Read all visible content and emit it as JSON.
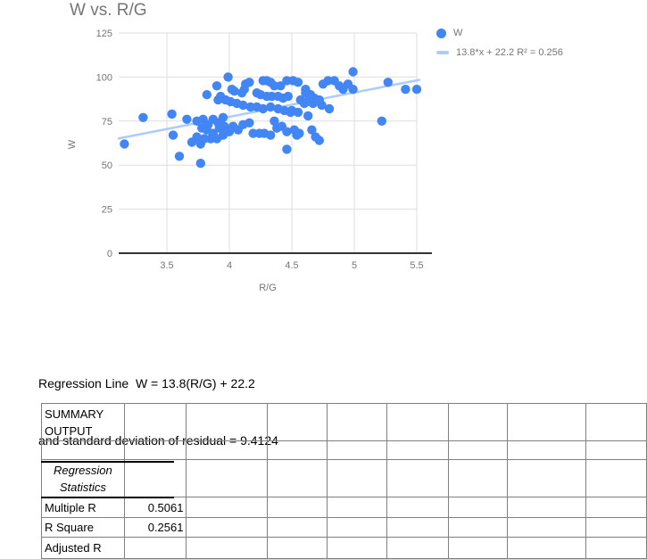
{
  "chart": {
    "title": "W vs. R/G",
    "xlabel": "R/G",
    "ylabel": "W",
    "legend": {
      "series_label": "W",
      "trend_label": "13.8*x + 22.2 R² = 0.256"
    }
  },
  "chart_data": {
    "type": "scatter",
    "title": "W vs. R/G",
    "xlabel": "R/G",
    "ylabel": "W",
    "x_ticks": [
      3.5,
      4,
      4.5,
      5,
      5.5
    ],
    "y_ticks": [
      0,
      25,
      50,
      75,
      100,
      125
    ],
    "xlim": [
      3.11,
      5.55
    ],
    "ylim": [
      0,
      125
    ],
    "grid": true,
    "legend_position": "top-right",
    "series": [
      {
        "name": "W",
        "points": [
          [
            3.16,
            62
          ],
          [
            3.31,
            77
          ],
          [
            3.54,
            79
          ],
          [
            3.55,
            67
          ],
          [
            3.6,
            55
          ],
          [
            3.66,
            76
          ],
          [
            3.7,
            63
          ],
          [
            3.77,
            51
          ],
          [
            3.77,
            62
          ],
          [
            3.74,
            75
          ],
          [
            3.79,
            76
          ],
          [
            3.83,
            73
          ],
          [
            3.87,
            76
          ],
          [
            3.91,
            74
          ],
          [
            3.95,
            77
          ],
          [
            3.78,
            71
          ],
          [
            3.82,
            70
          ],
          [
            3.87,
            68
          ],
          [
            3.92,
            71
          ],
          [
            3.96,
            72
          ],
          [
            3.74,
            66
          ],
          [
            3.8,
            65
          ],
          [
            3.85,
            65
          ],
          [
            3.9,
            65
          ],
          [
            3.95,
            67
          ],
          [
            3.82,
            90
          ],
          [
            3.9,
            95
          ],
          [
            3.91,
            87
          ],
          [
            3.93,
            89
          ],
          [
            3.97,
            87
          ],
          [
            3.99,
            100
          ],
          [
            4.02,
            93
          ],
          [
            4.04,
            92
          ],
          [
            4.01,
            86
          ],
          [
            4.06,
            85
          ],
          [
            4.11,
            84
          ],
          [
            4.12,
            93
          ],
          [
            4.1,
            91
          ],
          [
            4.13,
            96
          ],
          [
            4.16,
            97
          ],
          [
            4.0,
            69
          ],
          [
            4.03,
            72
          ],
          [
            4.07,
            70
          ],
          [
            4.11,
            73
          ],
          [
            4.16,
            74
          ],
          [
            4.17,
            83
          ],
          [
            4.22,
            83
          ],
          [
            4.22,
            91
          ],
          [
            4.25,
            90
          ],
          [
            4.27,
            82
          ],
          [
            4.3,
            89
          ],
          [
            4.33,
            83
          ],
          [
            4.34,
            89
          ],
          [
            4.39,
            89
          ],
          [
            4.39,
            82
          ],
          [
            4.43,
            88
          ],
          [
            4.44,
            81
          ],
          [
            4.47,
            89
          ],
          [
            4.49,
            80
          ],
          [
            4.27,
            98
          ],
          [
            4.3,
            98
          ],
          [
            4.33,
            97
          ],
          [
            4.36,
            95
          ],
          [
            4.41,
            95
          ],
          [
            4.46,
            98
          ],
          [
            4.51,
            98
          ],
          [
            4.55,
            97
          ],
          [
            4.57,
            87
          ],
          [
            4.6,
            85
          ],
          [
            4.61,
            93
          ],
          [
            4.19,
            68
          ],
          [
            4.24,
            68
          ],
          [
            4.28,
            68
          ],
          [
            4.33,
            67
          ],
          [
            4.36,
            75
          ],
          [
            4.38,
            71
          ],
          [
            4.42,
            72
          ],
          [
            4.46,
            69
          ],
          [
            4.52,
            70
          ],
          [
            4.46,
            59
          ],
          [
            4.5,
            81
          ],
          [
            4.55,
            80
          ],
          [
            4.63,
            78
          ],
          [
            4.8,
            82
          ],
          [
            4.54,
            67
          ],
          [
            4.56,
            68
          ],
          [
            4.66,
            70
          ],
          [
            4.69,
            66
          ],
          [
            4.72,
            64
          ],
          [
            4.61,
            91
          ],
          [
            4.65,
            90
          ],
          [
            4.68,
            88
          ],
          [
            4.72,
            87
          ],
          [
            4.62,
            86
          ],
          [
            4.67,
            85
          ],
          [
            4.74,
            84
          ],
          [
            4.75,
            96
          ],
          [
            4.79,
            98
          ],
          [
            4.84,
            98
          ],
          [
            4.88,
            95
          ],
          [
            4.91,
            93
          ],
          [
            4.95,
            96
          ],
          [
            4.99,
            93
          ],
          [
            4.99,
            103
          ],
          [
            5.22,
            75
          ],
          [
            5.27,
            97
          ],
          [
            5.41,
            93
          ],
          [
            5.5,
            93
          ]
        ]
      }
    ],
    "trendline": {
      "label": "13.8*x + 22.2 R² = 0.256",
      "slope": 13.8,
      "intercept": 22.2,
      "r2": 0.256
    }
  },
  "notes": {
    "line1": "Regression Line  W = 13.8(R/G) + 22.2",
    "line2": "and standard deviation of residual = 9.4124"
  },
  "table": {
    "num_columns": 9,
    "rows": [
      {
        "cells": [
          {
            "col": 0,
            "text": "SUMMARY OUTPUT"
          }
        ]
      },
      {
        "cells": []
      },
      {
        "cells": [
          {
            "col": 0,
            "text": "Regression Statistics",
            "italic": true,
            "align": "center"
          }
        ]
      },
      {
        "cells": [
          {
            "col": 0,
            "text": "Multiple R"
          },
          {
            "col": 1,
            "text": "0.5061",
            "align": "right"
          }
        ]
      },
      {
        "cells": [
          {
            "col": 0,
            "text": "R Square"
          },
          {
            "col": 1,
            "text": "0.2561",
            "align": "right"
          }
        ]
      },
      {
        "cells": [
          {
            "col": 0,
            "text": "Adjusted R"
          }
        ]
      }
    ]
  },
  "colors": {
    "point": "#4285F4",
    "trend": "#AECBFA",
    "chart_text": "#757575",
    "grid": "#DEDEDE",
    "axis": "#333333",
    "table_border": "#808080",
    "accent_border": "#000000"
  }
}
